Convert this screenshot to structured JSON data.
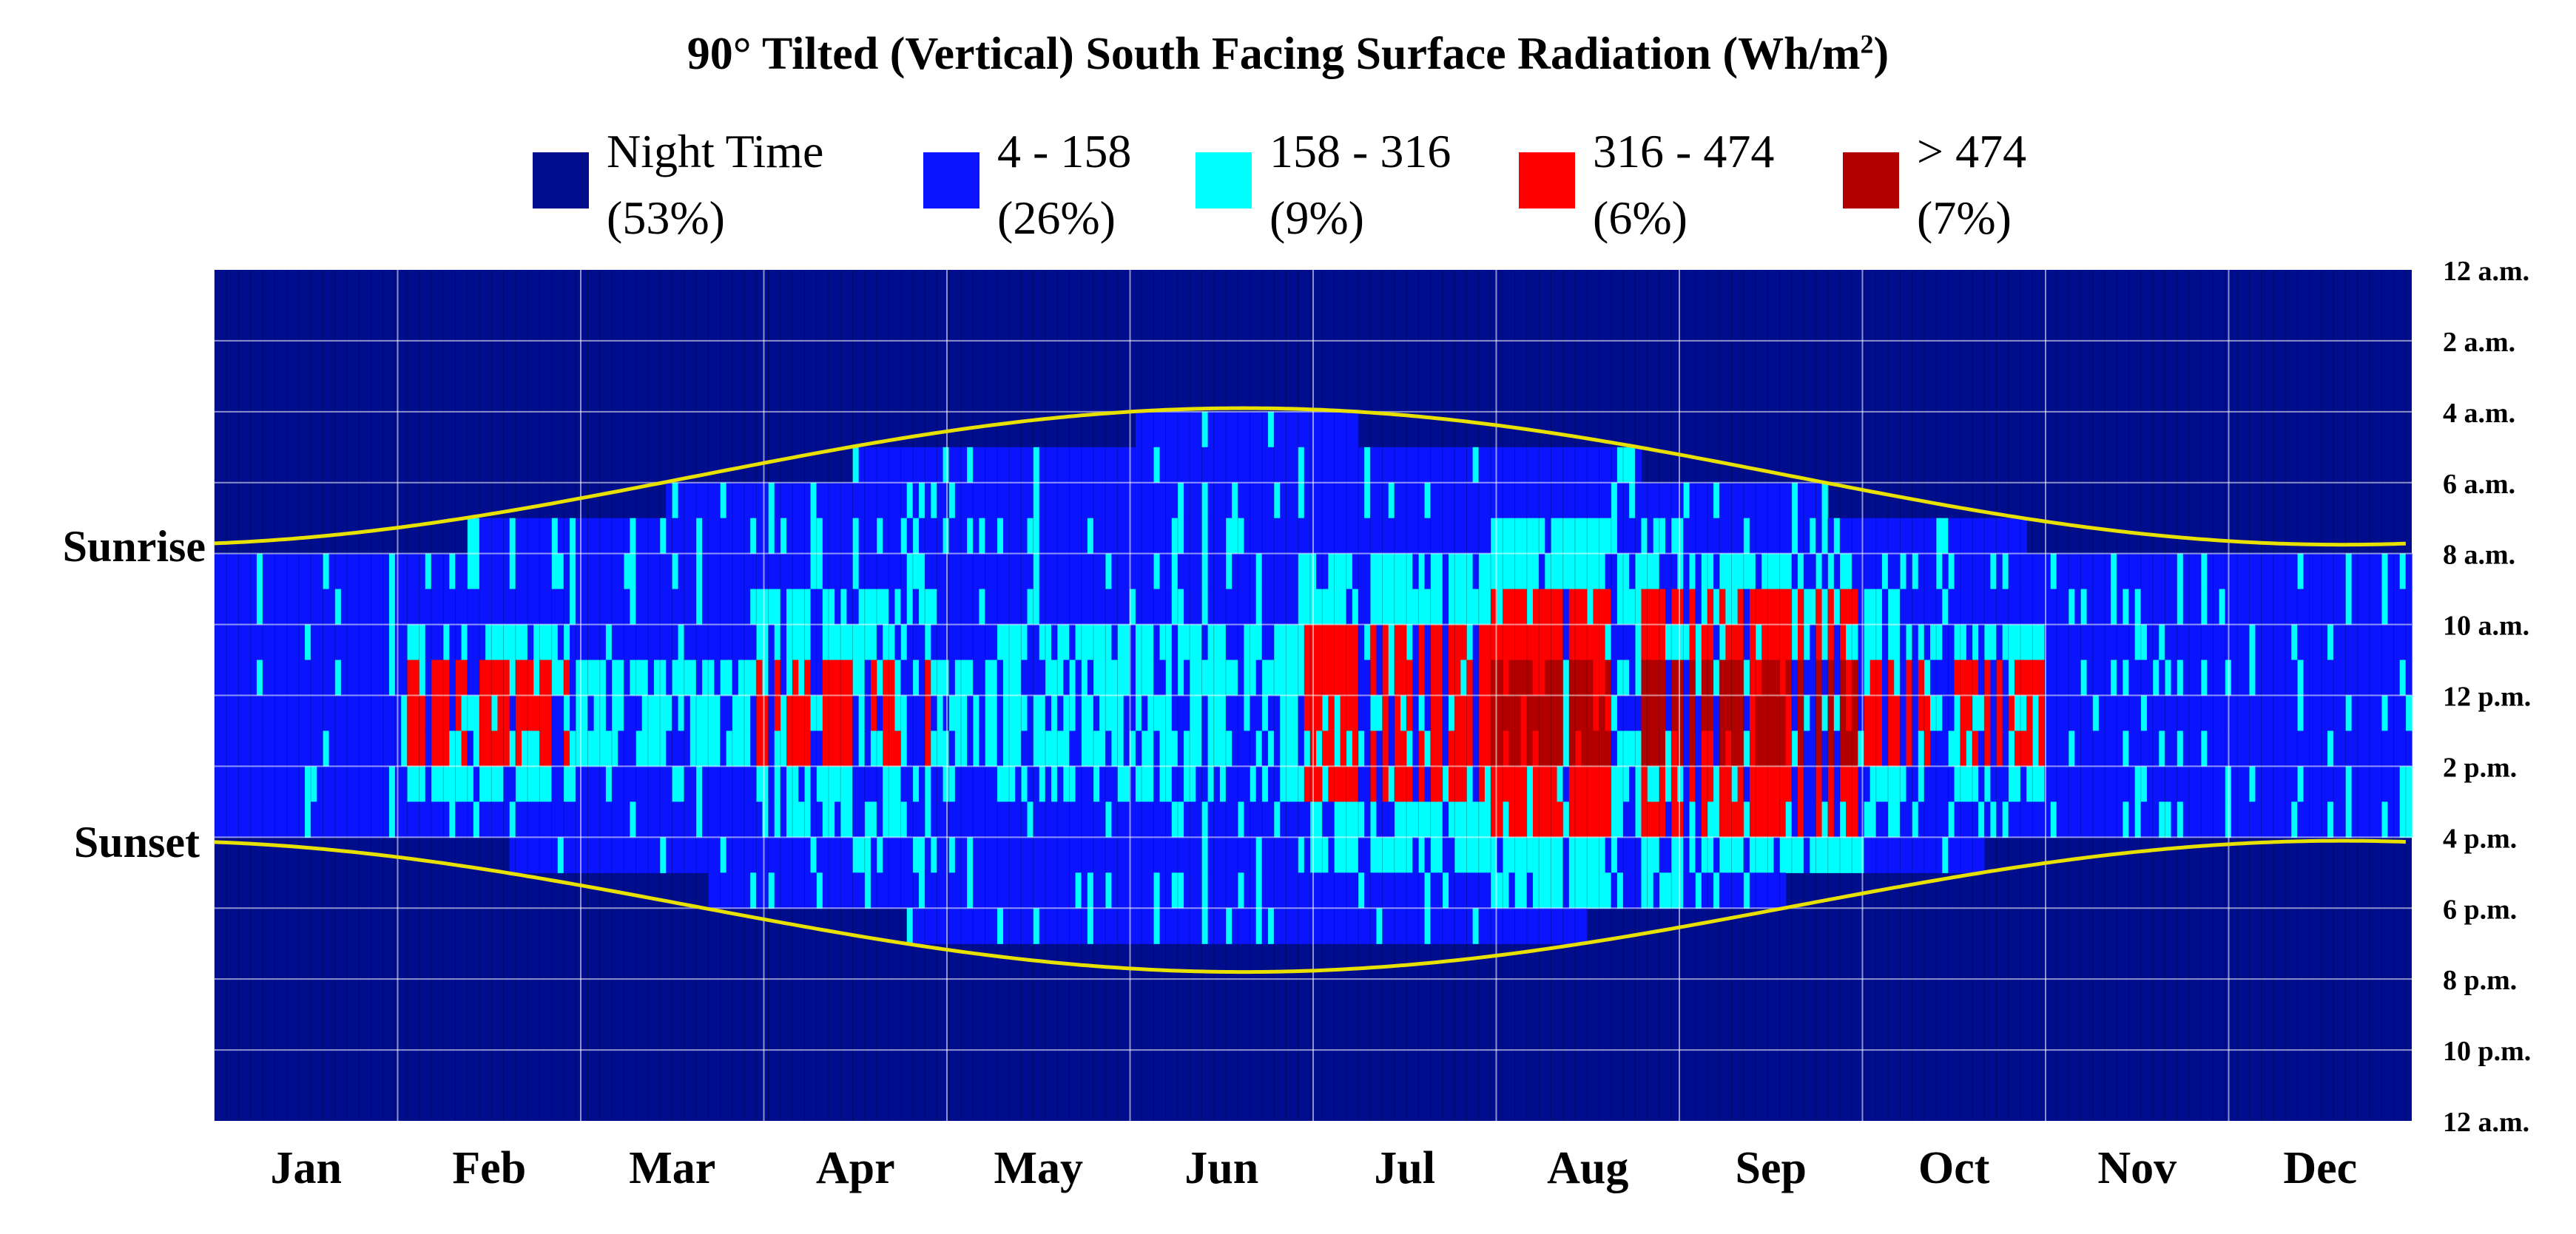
{
  "chart_data": {
    "type": "heatmap",
    "title": "90° Tilted (Vertical) South Facing Surface Radiation (Wh/m",
    "title_superscript": "2",
    "title_suffix": ")",
    "legend": [
      {
        "label": "Night Time",
        "percent": "(53%)",
        "color": "#000d8c"
      },
      {
        "label": "4 - 158",
        "percent": "(26%)",
        "color": "#0a14ff"
      },
      {
        "label": "158 - 316",
        "percent": "(9%)",
        "color": "#00ffff"
      },
      {
        "label": "316 - 474",
        "percent": "(6%)",
        "color": "#ff0000"
      },
      {
        "label": "> 474",
        "percent": "(7%)",
        "color": "#b20000"
      }
    ],
    "months": [
      "Jan",
      "Feb",
      "Mar",
      "Apr",
      "May",
      "Jun",
      "Jul",
      "Aug",
      "Sep",
      "Oct",
      "Nov",
      "Dec"
    ],
    "hour_labels": [
      "12 a.m.",
      "2 a.m.",
      "4 a.m.",
      "6 a.m.",
      "8 a.m.",
      "10 a.m.",
      "12 p.m.",
      "2 p.m.",
      "4 p.m.",
      "6 p.m.",
      "8 p.m.",
      "10 p.m.",
      "12 a.m."
    ],
    "x_unit": "day of year (1-365)",
    "y_unit": "hour of day (0-24)",
    "sunrise_label": "Sunrise",
    "sunset_label": "Sunset",
    "sunrise_curve": {
      "winter_hour": 7.75,
      "summer_hour": 3.9,
      "min_day": 172
    },
    "sunset_curve": {
      "winter_hour": 16.1,
      "summer_hour": 19.8,
      "max_day": 172
    },
    "radiation_peak_by_month": [
      1,
      3,
      2,
      3,
      2,
      2,
      3,
      4,
      4,
      3,
      1,
      1
    ],
    "gridlines": true
  }
}
